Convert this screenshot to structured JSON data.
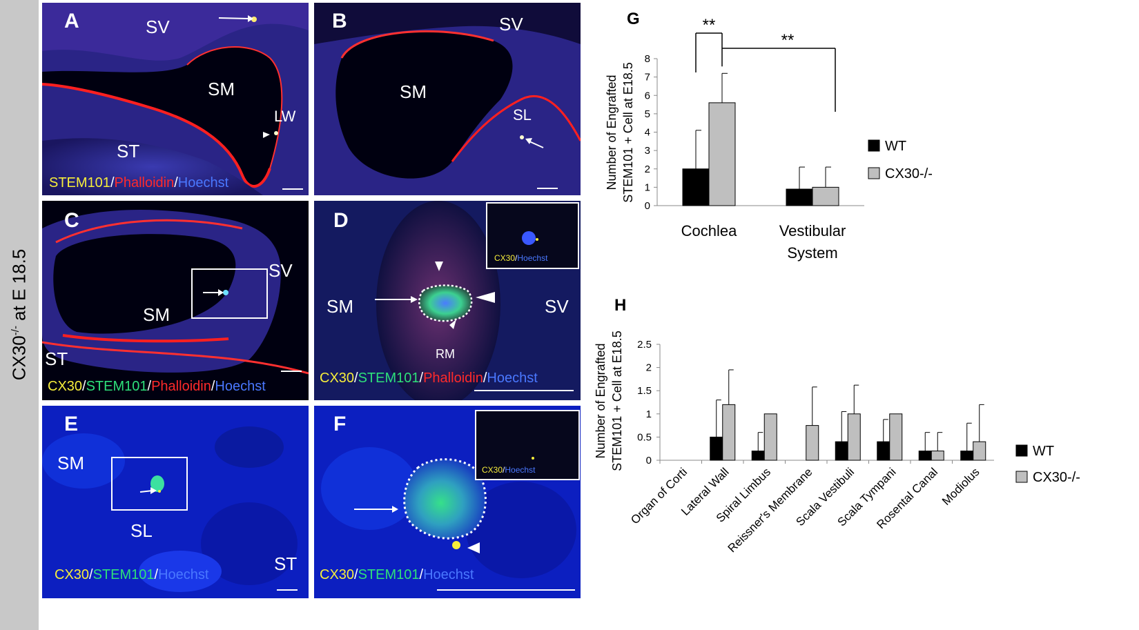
{
  "side_label": {
    "main": "CX30",
    "sup": "-/-",
    "tail": " at E 18.5"
  },
  "panels": {
    "A": {
      "letter": "A",
      "labels": [
        "SV",
        "SM",
        "LW",
        "ST"
      ],
      "stain": [
        "STEM101",
        "/",
        "Phalloidin",
        "/",
        "Hoechst"
      ]
    },
    "B": {
      "letter": "B",
      "labels": [
        "SV",
        "SM",
        "SL"
      ]
    },
    "C": {
      "letter": "C",
      "labels": [
        "SV",
        "SM",
        "ST"
      ],
      "stain": [
        "CX30",
        "/",
        "STEM101",
        "/",
        "Phalloidin",
        "/",
        "Hoechst"
      ]
    },
    "D": {
      "letter": "D",
      "labels": [
        "SM",
        "SV",
        "RM"
      ],
      "stain": [
        "CX30",
        "/",
        "STEM101",
        "/",
        "Phalloidin",
        "/",
        "Hoechst"
      ],
      "inset_stain": [
        "CX30",
        "/",
        "Hoechst"
      ]
    },
    "E": {
      "letter": "E",
      "labels": [
        "SM",
        "SL",
        "ST"
      ],
      "stain": [
        "CX30",
        "/",
        "STEM101",
        "/",
        "Hoechst"
      ]
    },
    "F": {
      "letter": "F",
      "stain": [
        "CX30",
        "/",
        "STEM101",
        "/",
        "Hoechst"
      ],
      "inset_stain": [
        "CX30",
        "/",
        "Hoechst"
      ]
    }
  },
  "colors": {
    "wt": "#000000",
    "ko": "#bfbfbf",
    "yellow": "#f7ee3b",
    "red": "#ff2a2a",
    "blue": "#4a78ff",
    "green": "#2ee07a"
  },
  "chart_data": [
    {
      "panel": "G",
      "type": "bar",
      "ylabel": "Number of  Engrafted STEM101 + Cell at E18.5",
      "ylim": [
        0,
        8
      ],
      "yticks": [
        "0",
        "1",
        "2",
        "3",
        "4",
        "5",
        "6",
        "7",
        "8"
      ],
      "categories": [
        "Cochlea",
        "Vestibular System"
      ],
      "series": [
        {
          "name": "WT",
          "values": [
            2.0,
            0.9
          ],
          "errors": [
            2.1,
            1.2
          ]
        },
        {
          "name": "CX30-/-",
          "values": [
            5.6,
            1.0
          ],
          "errors": [
            1.6,
            1.1
          ]
        }
      ],
      "significance": [
        "**",
        "**"
      ],
      "legend": "right"
    },
    {
      "panel": "H",
      "type": "bar",
      "ylabel": "Number of  Engrafted STEM101 + Cell at E18.5",
      "ylim": [
        0,
        2.5
      ],
      "yticks": [
        "0",
        "0.5",
        "1",
        "1.5",
        "2",
        "2.5"
      ],
      "categories": [
        "Organ of Corti",
        "Lateral Wall",
        "Spiral Limbus",
        "Reissner's Membrane",
        "Scala Vestibuli",
        "Scala Tympani",
        "Rosental Canal",
        "Modiolus"
      ],
      "series": [
        {
          "name": "WT",
          "values": [
            0,
            0.5,
            0.2,
            0,
            0.4,
            0.4,
            0.2,
            0.2
          ],
          "errors": [
            0,
            0.8,
            0.4,
            0,
            0.65,
            0.48,
            0.4,
            0.6
          ]
        },
        {
          "name": "CX30-/-",
          "values": [
            0,
            1.2,
            1.0,
            0.75,
            1.0,
            1.0,
            0.2,
            0.4
          ],
          "errors": [
            0,
            0.75,
            0,
            0.83,
            0.62,
            0,
            0.4,
            0.8
          ]
        }
      ],
      "legend": "right"
    }
  ]
}
